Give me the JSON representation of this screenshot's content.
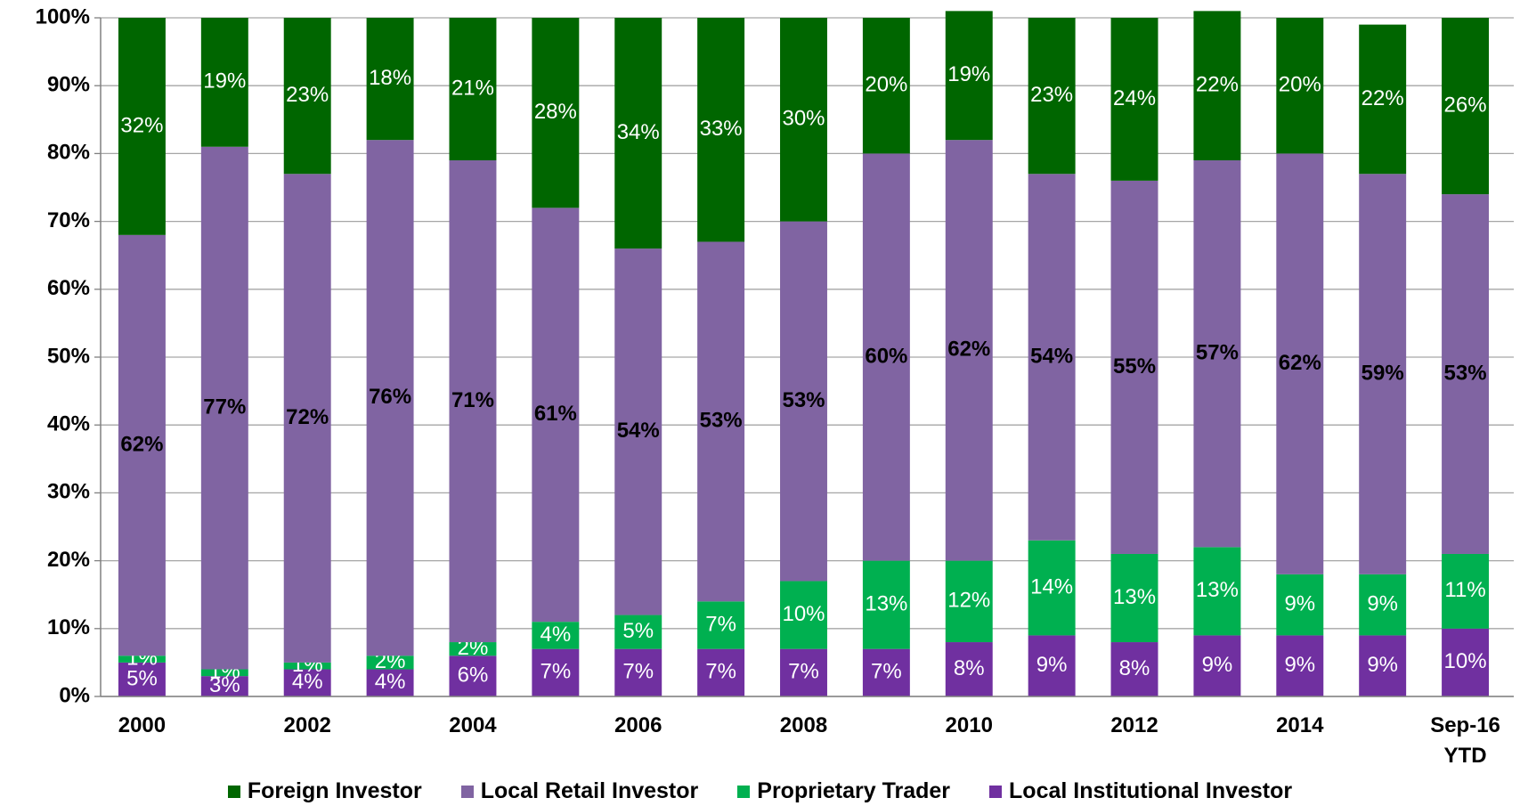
{
  "chart_data": {
    "type": "stacked_bar",
    "categories": [
      "2000",
      null,
      "2002",
      null,
      "2004",
      null,
      "2006",
      null,
      "2008",
      null,
      "2010",
      null,
      "2012",
      null,
      "2014",
      null,
      "Sep-16\nYTD"
    ],
    "series": [
      {
        "name": "Foreign Investor",
        "color": "#006600",
        "label_color": "#ffffff",
        "values": [
          32,
          19,
          23,
          18,
          21,
          28,
          34,
          33,
          30,
          20,
          19,
          23,
          24,
          22,
          20,
          22,
          26
        ],
        "value_labels": [
          "32%",
          "19%",
          "23%",
          "18%",
          "21%",
          "28%",
          "34%",
          "33%",
          "30%",
          "20%",
          "19%",
          "23%",
          "24%",
          "22%",
          "20%",
          "22%",
          "26%"
        ]
      },
      {
        "name": "Local Retail Investor",
        "color": "#8064a2",
        "label_color": "#000000",
        "values": [
          62,
          77,
          72,
          76,
          71,
          61,
          54,
          53,
          53,
          60,
          62,
          54,
          55,
          57,
          62,
          59,
          53
        ],
        "value_labels": [
          "62%",
          "77%",
          "72%",
          "76%",
          "71%",
          "61%",
          "54%",
          "53%",
          "53%",
          "60%",
          "62%",
          "54%",
          "55%",
          "57%",
          "62%",
          "59%",
          "53%"
        ]
      },
      {
        "name": "Proprietary  Trader",
        "color": "#00b050",
        "label_color": "#ffffff",
        "values": [
          1,
          1,
          1,
          2,
          2,
          4,
          5,
          7,
          10,
          13,
          12,
          14,
          13,
          13,
          9,
          9,
          11
        ],
        "value_labels": [
          "1%",
          "1%",
          "1%",
          "2%",
          "2%",
          "4%",
          "5%",
          "7%",
          "10%",
          "13%",
          "12%",
          "14%",
          "13%",
          "13%",
          "9%",
          "9%",
          "11%"
        ]
      },
      {
        "name": "Local Institutional Investor",
        "color": "#7030a0",
        "label_color": "#ffffff",
        "values": [
          5,
          3,
          4,
          4,
          6,
          7,
          7,
          7,
          7,
          7,
          8,
          9,
          8,
          9,
          9,
          9,
          10
        ],
        "value_labels": [
          "5%",
          "3%",
          "4%",
          "4%",
          "6%",
          "7%",
          "7%",
          "7%",
          "7%",
          "7%",
          "8%",
          "9%",
          "8%",
          "9%",
          "9%",
          "9%",
          "10%"
        ]
      }
    ],
    "ylim": [
      0,
      100
    ],
    "yticks": [
      {
        "value": 0,
        "label": "0%"
      },
      {
        "value": 10,
        "label": "10%"
      },
      {
        "value": 20,
        "label": "20%"
      },
      {
        "value": 30,
        "label": "30%"
      },
      {
        "value": 40,
        "label": "40%"
      },
      {
        "value": 50,
        "label": "50%"
      },
      {
        "value": 60,
        "label": "60%"
      },
      {
        "value": 70,
        "label": "70%"
      },
      {
        "value": 80,
        "label": "80%"
      },
      {
        "value": 90,
        "label": "90%"
      },
      {
        "value": 100,
        "label": "100%"
      }
    ],
    "grid": true,
    "legend": "bottom"
  }
}
